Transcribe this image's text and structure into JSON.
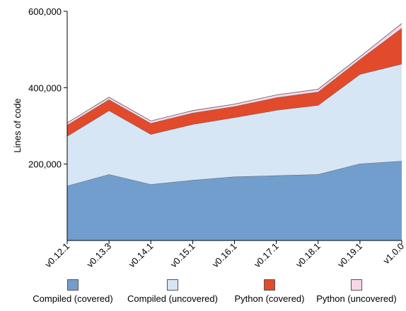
{
  "chart_data": {
    "type": "area",
    "stacked": true,
    "ylabel": "Lines of code",
    "xlabel": "",
    "title": "",
    "categories": [
      "v0.12.1",
      "v0.13.3",
      "v0.14.1",
      "v0.15.1",
      "v0.16.1",
      "v0.17.1",
      "v0.18.1",
      "v0.19.1",
      "v1.0.0"
    ],
    "ylim": [
      0,
      600000
    ],
    "yticks": [
      200000,
      400000,
      600000
    ],
    "ytick_labels": [
      "200,000",
      "400,000",
      "600,000"
    ],
    "grid": false,
    "legend_position": "bottom",
    "series": [
      {
        "name": "Compiled (covered)",
        "color": "#729ece",
        "values": [
          143000,
          173000,
          147000,
          158000,
          167000,
          170000,
          173000,
          201000,
          208000
        ]
      },
      {
        "name": "Compiled (uncovered)",
        "color": "#d6e6f4",
        "values": [
          130000,
          167000,
          131000,
          146000,
          155000,
          171000,
          181000,
          234000,
          254000
        ]
      },
      {
        "name": "Python (covered)",
        "color": "#e24a2c",
        "values": [
          29000,
          29000,
          29000,
          30000,
          29000,
          33000,
          35000,
          39000,
          94000
        ]
      },
      {
        "name": "Python (uncovered)",
        "color": "#f9d6e6",
        "values": [
          6000,
          6000,
          6000,
          6000,
          6000,
          7000,
          7000,
          7000,
          12000
        ]
      }
    ]
  }
}
